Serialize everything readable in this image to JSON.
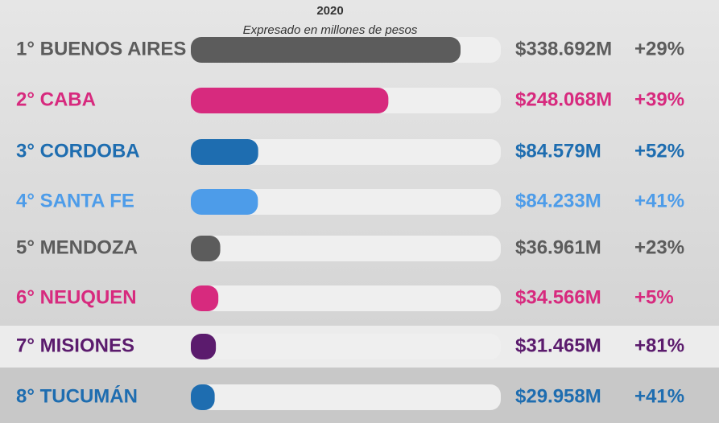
{
  "chart_data": {
    "type": "bar",
    "title": "2020",
    "subtitle": "Expresado en millones de pesos",
    "categories": [
      "1° BUENOS AIRES",
      "2° CABA",
      "3° CORDOBA",
      "4° SANTA FE",
      "5° MENDOZA",
      "6° NEUQUEN",
      "7° MISIONES",
      "8° TUCUMÁN"
    ],
    "values": [
      338692,
      248068,
      84579,
      84233,
      36961,
      34566,
      31465,
      29958
    ],
    "value_labels": [
      "$338.692M",
      "$248.068M",
      "$84.579M",
      "$84.233M",
      "$36.961M",
      "$34.566M",
      "$31.465M",
      "$29.958M"
    ],
    "colors": [
      "#5c5c5c",
      "#d72a7e",
      "#1e6db0",
      "#4d9ce9",
      "#5c5c5c",
      "#d72a7e",
      "#5b1b6d",
      "#1e6db0"
    ],
    "growth": {
      "values": [
        29,
        39,
        52,
        41,
        23,
        5,
        81,
        41
      ],
      "value_labels": [
        "+29%",
        "+39%",
        "+52%",
        "+41%",
        "+23%",
        "+5%",
        "+81%",
        "+41%"
      ]
    }
  }
}
